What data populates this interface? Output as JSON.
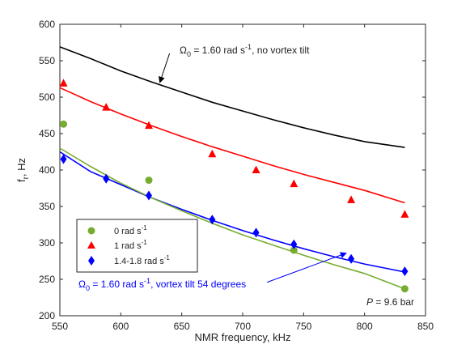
{
  "chart_data": {
    "type": "scatter",
    "xlabel": "NMR frequency, kHz",
    "ylabel": "f",
    "ylabel_sub": "r",
    "ylabel_unit": ", Hz",
    "xlim": [
      550,
      850
    ],
    "ylim": [
      200,
      600
    ],
    "xticks": [
      "550",
      "600",
      "650",
      "700",
      "750",
      "800",
      "850"
    ],
    "yticks": [
      "200",
      "250",
      "300",
      "350",
      "400",
      "450",
      "500",
      "550",
      "600"
    ],
    "grid": false,
    "legend_position": "lower-left",
    "series": [
      {
        "name": "0 rad s",
        "name_sup": "-1",
        "marker": "circle",
        "color": "#77ac30",
        "x": [
          553,
          623,
          742,
          833
        ],
        "y": [
          463,
          386,
          290,
          237
        ]
      },
      {
        "name": "1 rad s",
        "name_sup": "-1",
        "marker": "triangle",
        "color": "#ff0000",
        "x": [
          553,
          588,
          623,
          675,
          711,
          742,
          789,
          833
        ],
        "y": [
          519,
          486,
          461,
          422,
          400,
          381,
          359,
          339
        ]
      },
      {
        "name": "1.4-1.8 rad s",
        "name_sup": "-1",
        "marker": "diamond",
        "color": "#0000ff",
        "x": [
          553,
          588,
          623,
          675,
          711,
          742,
          789,
          833
        ],
        "y": [
          415,
          388,
          365,
          332,
          314,
          298,
          278,
          261
        ]
      }
    ],
    "lines": [
      {
        "color": "#000000",
        "x": [
          550,
          575,
          600,
          625,
          650,
          675,
          700,
          725,
          750,
          775,
          800,
          833
        ],
        "y": [
          569,
          553,
          536,
          521,
          507,
          493,
          481,
          469,
          458,
          448,
          439,
          431
        ]
      },
      {
        "color": "#ff0000",
        "x": [
          550,
          575,
          600,
          625,
          650,
          675,
          700,
          725,
          750,
          775,
          800,
          833
        ],
        "y": [
          513,
          494,
          477,
          461,
          446,
          432,
          419,
          406,
          394,
          383,
          372,
          355
        ]
      },
      {
        "color": "#0000ff",
        "x": [
          550,
          575,
          600,
          625,
          650,
          675,
          700,
          725,
          750,
          775,
          800,
          833
        ],
        "y": [
          425,
          398,
          380,
          362,
          346,
          331,
          317,
          304,
          292,
          281,
          271,
          260
        ]
      },
      {
        "color": "#77ac30",
        "x": [
          550,
          575,
          600,
          625,
          650,
          675,
          700,
          725,
          750,
          775,
          800,
          833
        ],
        "y": [
          430,
          405,
          382,
          362,
          344,
          327,
          311,
          297,
          283,
          270,
          258,
          237
        ]
      }
    ],
    "annotations": [
      {
        "color": "#000000",
        "pre": "Ω",
        "sub": "0",
        "mid": " = 1.60 rad s",
        "sup": "-1",
        "post": ", no vortex tilt",
        "arrow_from": [
          640,
          560
        ],
        "arrow_to": [
          632,
          520
        ]
      },
      {
        "color": "#0000ff",
        "pre": "Ω",
        "sub": "0",
        "mid": " = 1.60 rad s",
        "sup": "-1",
        "post": ", vortex tilt 54 degrees",
        "arrow_from": [
          720,
          246
        ],
        "arrow_to": [
          785,
          286
        ]
      },
      {
        "color": "#000000",
        "italic": "P",
        "post": " = 9.6 bar"
      }
    ]
  }
}
